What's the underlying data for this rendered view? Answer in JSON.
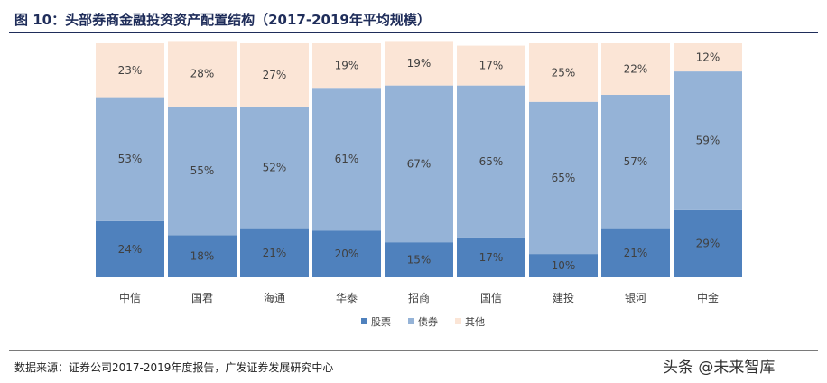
{
  "title": "图 10：头部券商金融投资资产配置结构（2017-2019年平均规模）",
  "source": "数据来源：证券公司2017-2019年度报告，广发证券发展研究中心",
  "watermark": "头条 @未来智库",
  "colors": {
    "title": "#1f2d5a",
    "rule": "#1f2d5a",
    "stock": "#4f81bd",
    "bond": "#95b3d7",
    "other": "#fbe5d6"
  },
  "chart_data": {
    "type": "bar",
    "stacked": true,
    "categories": [
      "中信",
      "国君",
      "海通",
      "华泰",
      "招商",
      "国信",
      "建投",
      "银河",
      "中金"
    ],
    "series": [
      {
        "name": "股票",
        "values": [
          24,
          18,
          21,
          20,
          15,
          17,
          10,
          21,
          29
        ]
      },
      {
        "name": "债券",
        "values": [
          53,
          55,
          52,
          61,
          67,
          65,
          65,
          57,
          59
        ]
      },
      {
        "name": "其他",
        "values": [
          23,
          28,
          27,
          19,
          19,
          17,
          25,
          22,
          12
        ]
      }
    ],
    "value_suffix": "%",
    "ylim": [
      0,
      100
    ],
    "legend": "bottom",
    "grid": false
  }
}
